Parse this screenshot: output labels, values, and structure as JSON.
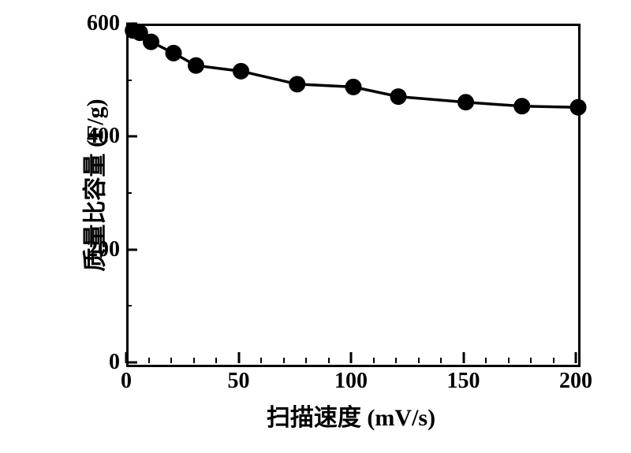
{
  "chart": {
    "type": "line",
    "xlabel": "扫描速度 (mV/s)",
    "ylabel": "质量比容量 (F/g)",
    "label_fontsize": 30,
    "tick_fontsize": 28,
    "font_weight": "bold",
    "xlim": [
      0,
      200
    ],
    "ylim": [
      0,
      600
    ],
    "xtick_major_step": 50,
    "ytick_major_step": 200,
    "xtick_minor_step": 10,
    "ytick_minor_step": 100,
    "x_major_ticks": [
      0,
      50,
      100,
      150,
      200
    ],
    "y_major_ticks": [
      0,
      200,
      400,
      600
    ],
    "y_minor_ticks": [
      100,
      300,
      500
    ],
    "x_minor_ticks": [
      10,
      20,
      30,
      40,
      60,
      70,
      80,
      90,
      110,
      120,
      130,
      140,
      160,
      170,
      180,
      190
    ],
    "background_color": "#ffffff",
    "axis_color": "#000000",
    "axis_width": 3,
    "series": {
      "color": "#000000",
      "line_width": 3.5,
      "marker": "circle",
      "marker_size": 10,
      "marker_fill": "#000000",
      "marker_stroke": "#000000",
      "x": [
        2,
        5,
        10,
        20,
        30,
        50,
        75,
        100,
        120,
        150,
        175,
        200
      ],
      "y": [
        592,
        588,
        572,
        552,
        530,
        520,
        497,
        492,
        475,
        465,
        458,
        456
      ]
    }
  }
}
